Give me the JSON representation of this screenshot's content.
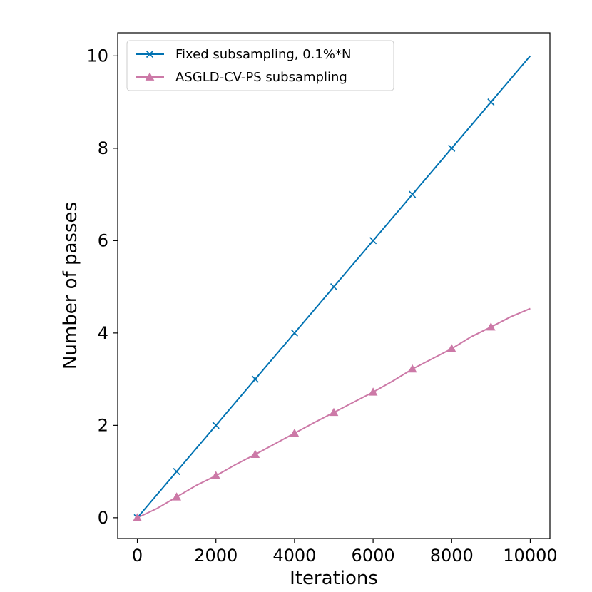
{
  "chart_data": {
    "type": "line",
    "title": "",
    "xlabel": "Iterations",
    "ylabel": "Number of passes",
    "xlim": [
      -500,
      10500
    ],
    "ylim": [
      -0.45,
      10.5
    ],
    "xticks": [
      0,
      2000,
      4000,
      6000,
      8000,
      10000
    ],
    "yticks": [
      0,
      2,
      4,
      6,
      8,
      10
    ],
    "grid": false,
    "legend": "top-left",
    "series": [
      {
        "name": "Fixed subsampling, 0.1%*N",
        "color": "#0072b2",
        "marker": "x",
        "x": [
          0,
          10000
        ],
        "y": [
          0,
          10
        ],
        "marker_x": [
          0,
          1000,
          2000,
          3000,
          4000,
          5000,
          6000,
          7000,
          8000,
          9000
        ],
        "marker_y": [
          0,
          1,
          2,
          3,
          4,
          5,
          6,
          7,
          8,
          9
        ]
      },
      {
        "name": "ASGLD-CV-PS subsampling",
        "color": "#cc79a7",
        "marker": "triangle",
        "x": [
          0,
          500,
          1000,
          1500,
          2000,
          2500,
          3000,
          3500,
          4000,
          4500,
          5000,
          5500,
          6000,
          6500,
          7000,
          7500,
          8000,
          8500,
          9000,
          9500,
          10000
        ],
        "y": [
          0,
          0.2,
          0.45,
          0.7,
          0.91,
          1.15,
          1.37,
          1.6,
          1.83,
          2.06,
          2.28,
          2.5,
          2.72,
          2.96,
          3.22,
          3.44,
          3.66,
          3.92,
          4.13,
          4.35,
          4.53
        ],
        "marker_x": [
          0,
          1000,
          2000,
          3000,
          4000,
          5000,
          6000,
          7000,
          8000,
          9000
        ],
        "marker_y": [
          0,
          0.45,
          0.91,
          1.37,
          1.83,
          2.28,
          2.72,
          3.22,
          3.66,
          4.13
        ]
      }
    ]
  }
}
